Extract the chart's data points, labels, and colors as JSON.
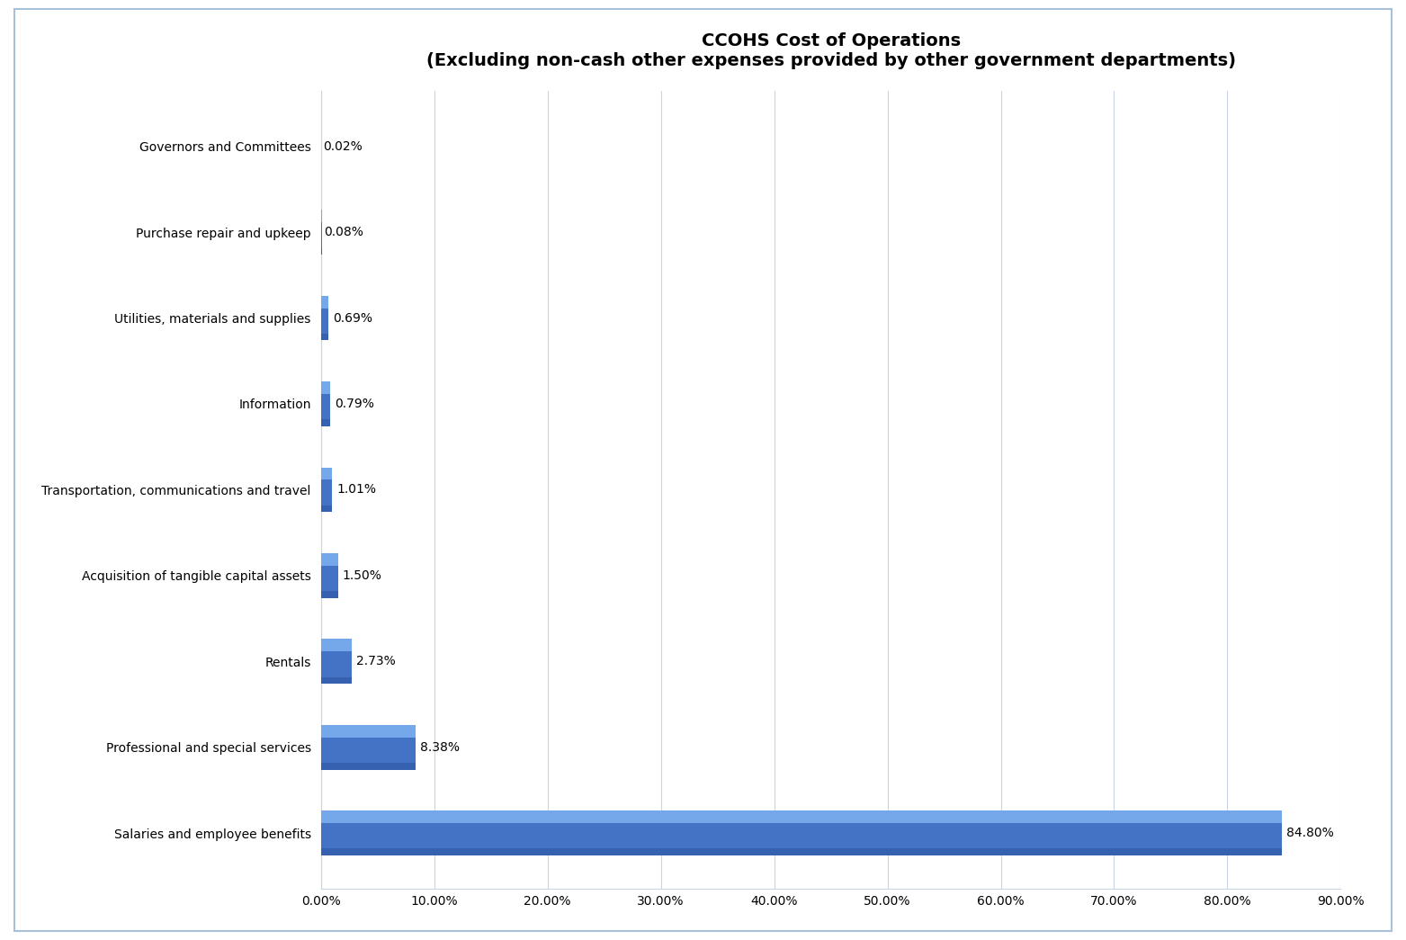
{
  "title_line1": "CCOHS Cost of Operations",
  "title_line2": "(Excluding non-cash other expenses provided by other government departments)",
  "categories": [
    "Salaries and employee benefits",
    "Professional and special services",
    "Rentals",
    "Acquisition of tangible capital assets",
    "Transportation, communications and travel",
    "Information",
    "Utilities, materials and supplies",
    "Purchase repair and upkeep",
    "Governors and Committees"
  ],
  "values": [
    84.8,
    8.38,
    2.73,
    1.5,
    1.01,
    0.79,
    0.69,
    0.08,
    0.02
  ],
  "labels": [
    "84.80%",
    "8.38%",
    "2.73%",
    "1.50%",
    "1.01%",
    "0.79%",
    "0.69%",
    "0.08%",
    "0.02%"
  ],
  "bar_color_main": "#4472C4",
  "bar_color_light": "#7BAEF0",
  "bar_color_dark": "#2A52A0",
  "background_color": "#FFFFFF",
  "plot_bg_color": "#FFFFFF",
  "grid_color": "#C8D4E8",
  "border_color": "#A8C0D8",
  "xlim": [
    0,
    90
  ],
  "xticks": [
    0,
    10,
    20,
    30,
    40,
    50,
    60,
    70,
    80,
    90
  ],
  "xtick_labels": [
    "0.00%",
    "10.00%",
    "20.00%",
    "30.00%",
    "40.00%",
    "50.00%",
    "60.00%",
    "70.00%",
    "80.00%",
    "90.00%"
  ],
  "title_fontsize": 14,
  "label_fontsize": 10,
  "tick_fontsize": 10,
  "value_label_fontsize": 10
}
